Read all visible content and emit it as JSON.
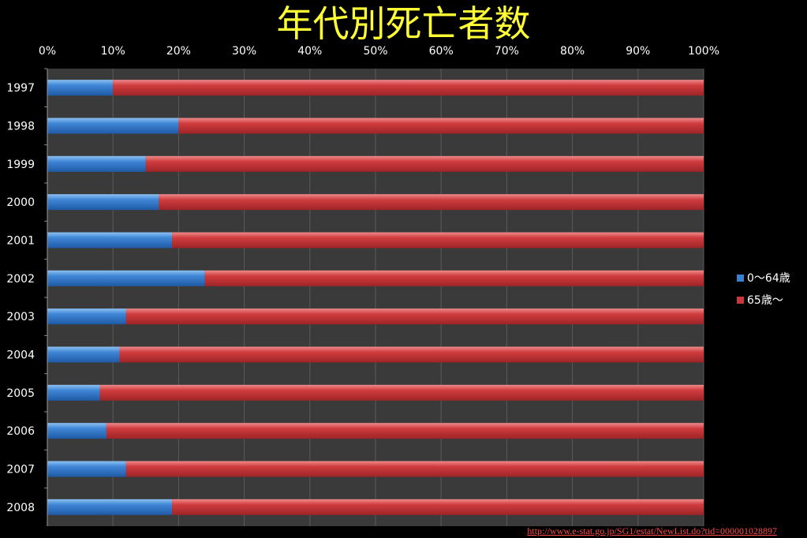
{
  "title": "年代別死亡者数",
  "source_url": "http://www.e-stat.go.jp/SG1/estat/NewList.do?tid=000001028897",
  "colors": {
    "young": "#3a7fd0",
    "old": "#c8383b",
    "plot_bg": "#3a3a3a",
    "grid": "#555555"
  },
  "chart_data": {
    "type": "bar",
    "orientation": "horizontal",
    "stacked": "percent",
    "categories": [
      "1997",
      "1998",
      "1999",
      "2000",
      "2001",
      "2002",
      "2003",
      "2004",
      "2005",
      "2006",
      "2007",
      "2008"
    ],
    "series": [
      {
        "name": "0〜64歳",
        "values": [
          10,
          20,
          15,
          17,
          19,
          24,
          12,
          11,
          8,
          9,
          12,
          19
        ]
      },
      {
        "name": "65歳〜",
        "values": [
          90,
          80,
          85,
          83,
          81,
          76,
          88,
          89,
          92,
          91,
          88,
          81
        ]
      }
    ],
    "x_ticks": [
      "0%",
      "10%",
      "20%",
      "30%",
      "40%",
      "50%",
      "60%",
      "70%",
      "80%",
      "90%",
      "100%"
    ],
    "xlim": [
      0,
      100
    ],
    "grid": true,
    "legend": "right"
  }
}
